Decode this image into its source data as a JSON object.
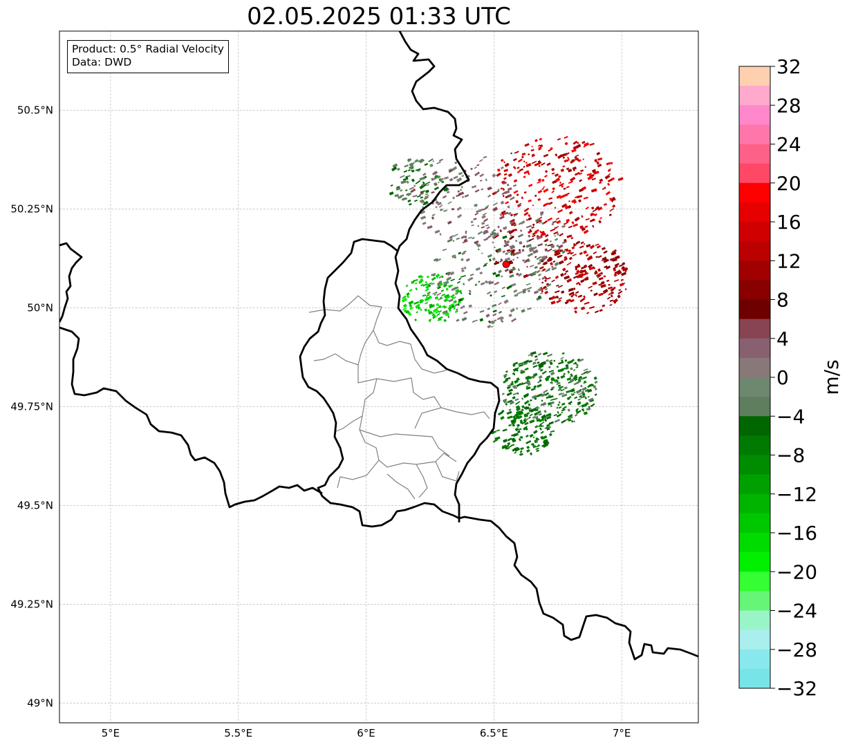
{
  "title": "02.05.2025 01:33 UTC",
  "info": {
    "product": "Product: 0.5° Radial Velocity",
    "data": "Data: DWD"
  },
  "map": {
    "lon_range": [
      4.8,
      7.3
    ],
    "lat_range": [
      48.95,
      50.7
    ],
    "x_ticks": [
      {
        "value": 5.0,
        "label": "5°E"
      },
      {
        "value": 5.5,
        "label": "5.5°E"
      },
      {
        "value": 6.0,
        "label": "6°E"
      },
      {
        "value": 6.5,
        "label": "6.5°E"
      },
      {
        "value": 7.0,
        "label": "7°E"
      }
    ],
    "y_ticks": [
      {
        "value": 50.5,
        "label": "50.5°N"
      },
      {
        "value": 50.25,
        "label": "50.25°N"
      },
      {
        "value": 50.0,
        "label": "50°N"
      },
      {
        "value": 49.75,
        "label": "49.75°N"
      },
      {
        "value": 49.5,
        "label": "49.5°N"
      },
      {
        "value": 49.25,
        "label": "49.25°N"
      },
      {
        "value": 49.0,
        "label": "49°N"
      }
    ],
    "grid": true,
    "radar_site": {
      "lon": 6.548,
      "lat": 50.11,
      "color": "#ff0000"
    }
  },
  "colorbar": {
    "label": "m/s",
    "min": -32,
    "max": 32,
    "tick_labels": [
      "32",
      "28",
      "24",
      "20",
      "16",
      "12",
      "8",
      "4",
      "0",
      "−4",
      "−8",
      "−12",
      "−16",
      "−20",
      "−24",
      "−28",
      "−32"
    ],
    "colors_top_to_bottom": [
      "#ffd0b0",
      "#ffaacc",
      "#ff88cc",
      "#ff77aa",
      "#ff6088",
      "#ff4866",
      "#ff0000",
      "#e60000",
      "#d00000",
      "#bb0000",
      "#a00000",
      "#880000",
      "#6e0000",
      "#884450",
      "#886070",
      "#887878",
      "#6e8870",
      "#5e7e5e",
      "#006600",
      "#007a00",
      "#008c00",
      "#00a000",
      "#00b400",
      "#00c800",
      "#00dc00",
      "#00f000",
      "#33ff33",
      "#66f577",
      "#99f5c8",
      "#aaeeee",
      "#88e8ee",
      "#77e4e8"
    ]
  }
}
